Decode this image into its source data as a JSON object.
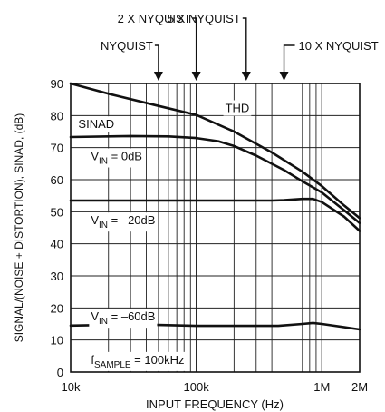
{
  "chart_data": {
    "type": "line",
    "xlabel": "INPUT FREQUENCY (Hz)",
    "ylabel": "SIGNAL/(NOISE + DISTORTION), SINAD, (dB)",
    "x_scale": "log",
    "xlim": [
      10000,
      2000000
    ],
    "ylim": [
      0,
      90
    ],
    "grid": true,
    "x_ticks": [
      {
        "value": 10000,
        "label": "10k"
      },
      {
        "value": 100000,
        "label": "100k"
      },
      {
        "value": 1000000,
        "label": "1M"
      },
      {
        "value": 2000000,
        "label": "2M"
      }
    ],
    "y_ticks": [
      {
        "value": 0,
        "label": "0"
      },
      {
        "value": 10,
        "label": "10"
      },
      {
        "value": 20,
        "label": "20"
      },
      {
        "value": 30,
        "label": "30"
      },
      {
        "value": 40,
        "label": "40"
      },
      {
        "value": 50,
        "label": "50"
      },
      {
        "value": 60,
        "label": "60"
      },
      {
        "value": 70,
        "label": "70"
      },
      {
        "value": 80,
        "label": "80"
      },
      {
        "value": 90,
        "label": "90"
      }
    ],
    "series": [
      {
        "name": "THD",
        "x": [
          10000,
          20000,
          50000,
          100000,
          200000,
          400000,
          700000,
          1000000,
          1500000,
          2000000
        ],
        "y": [
          90,
          86.8,
          83,
          80.2,
          75,
          68.5,
          62.5,
          58,
          52,
          48
        ]
      },
      {
        "name": "VIN = 0dB",
        "x": [
          10000,
          30000,
          60000,
          100000,
          150000,
          200000,
          300000,
          500000,
          700000,
          1000000,
          1500000,
          2000000
        ],
        "y": [
          73.3,
          73.6,
          73.5,
          73,
          72,
          70.5,
          67.5,
          63,
          59.5,
          56,
          50.5,
          46.5
        ]
      },
      {
        "name": "VIN = –20dB",
        "x": [
          10000,
          100000,
          400000,
          500000,
          700000,
          850000,
          1000000,
          1500000,
          2000000
        ],
        "y": [
          53.5,
          53.5,
          53.5,
          53.6,
          54,
          54,
          53,
          48.5,
          44
        ]
      },
      {
        "name": "VIN = –60dB",
        "x": [
          10000,
          20000,
          50000,
          100000,
          200000,
          450000,
          700000,
          850000,
          1000000,
          2000000
        ],
        "y": [
          14.5,
          14.7,
          14.7,
          14.4,
          14.4,
          14.4,
          15,
          15.3,
          15,
          13.3
        ]
      }
    ],
    "curve_labels": [
      {
        "series": 0,
        "text": "THD",
        "x": 170000,
        "y": 82.5
      },
      {
        "series": 1,
        "text": "SINAD",
        "x": 11500,
        "y": 77.5
      },
      {
        "series": 1,
        "main": "V",
        "sub": "IN",
        "tail": " = 0dB",
        "x": 14500,
        "y": 67.5
      },
      {
        "series": 2,
        "main": "V",
        "sub": "IN",
        "tail": " = –20dB",
        "x": 14500,
        "y": 47.5
      },
      {
        "series": 3,
        "main": "V",
        "sub": "IN",
        "tail": " = –60dB",
        "x": 14500,
        "y": 17.5
      }
    ],
    "note": {
      "main": "f",
      "sub": "SAMPLE",
      "tail": " = 100kHz",
      "x": 14500,
      "y": 4
    }
  },
  "annotations": [
    {
      "text": "2 X NYQUIST",
      "x": 100000
    },
    {
      "text": "5 X NYQUIST",
      "x": 250000
    },
    {
      "text": "NYQUIST",
      "x": 50000
    },
    {
      "text": "10 X NYQUIST",
      "x": 500000
    }
  ]
}
